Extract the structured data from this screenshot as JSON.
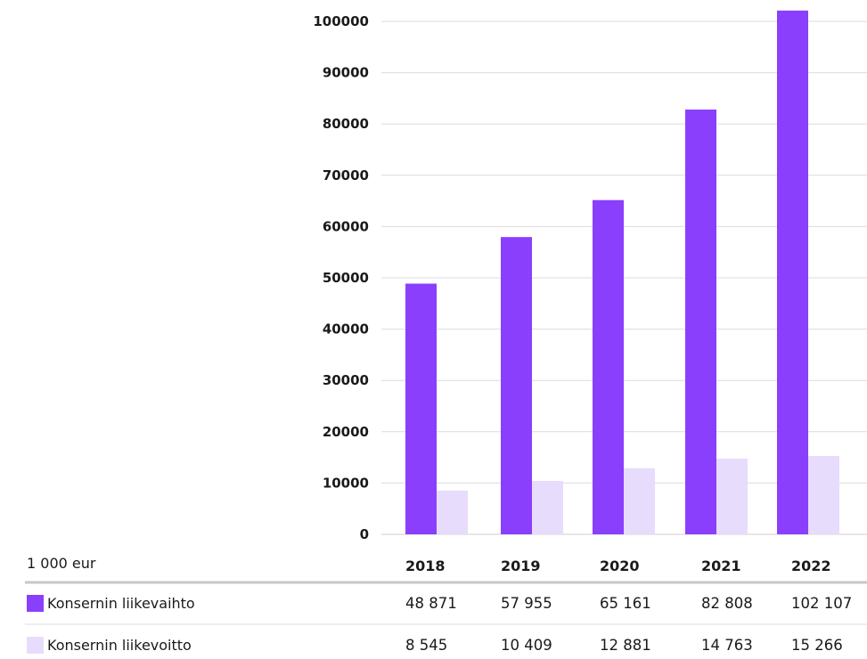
{
  "chart_data": {
    "type": "bar",
    "categories": [
      "2018",
      "2019",
      "2020",
      "2021",
      "2022"
    ],
    "series": [
      {
        "name": "Konsernin liikevaihto",
        "color": "#8a3ffc",
        "values": [
          48871,
          57955,
          65161,
          82808,
          102107
        ],
        "labels": [
          "48 871",
          "57 955",
          "65 161",
          "82 808",
          "102 107"
        ]
      },
      {
        "name": "Konsernin liikevoitto",
        "color": "#e8dcfc",
        "values": [
          8545,
          10409,
          12881,
          14763,
          15266
        ],
        "labels": [
          "8 545",
          "10 409",
          "12 881",
          "14 763",
          "15 266"
        ]
      }
    ],
    "yticks": [
      0,
      10000,
      20000,
      30000,
      40000,
      50000,
      60000,
      70000,
      80000,
      90000,
      100000
    ],
    "ylim": [
      0,
      100000
    ],
    "grid": true,
    "unit_label": "1 000 eur"
  }
}
